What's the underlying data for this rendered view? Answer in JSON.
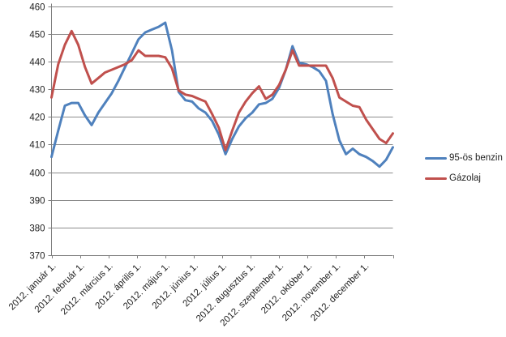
{
  "chart_data": {
    "type": "line",
    "title": "",
    "x_labels": [
      "2012. január 1.",
      "2012. február 1.",
      "2012. március 1.",
      "2012. április 1.",
      "2012. május 1.",
      "2012. június 1.",
      "2012. július 1.",
      "2012. augusztus 1.",
      "2012. szeptember 1.",
      "2012. október 1.",
      "2012. november 1.",
      "2012. december 1."
    ],
    "x_unit": "weekly samples, Jan 1 – Dec 31 2012",
    "ylim": [
      370,
      460
    ],
    "ytick_step": 10,
    "grid": true,
    "legend_position": "right",
    "series": [
      {
        "name": "95-ös benzin",
        "color": "#4F81BD",
        "values": [
          405.5,
          415,
          424,
          425,
          425,
          420.5,
          417,
          421.5,
          425,
          428.5,
          433,
          438,
          443,
          448,
          450.5,
          451.5,
          452.5,
          454,
          444,
          429,
          426,
          425.5,
          423,
          421.5,
          418.5,
          413.5,
          406.5,
          412,
          416.5,
          419.5,
          421.5,
          424.5,
          425,
          426.5,
          430.5,
          437,
          445.5,
          439.5,
          439,
          438,
          436.5,
          433,
          421,
          411.5,
          406.5,
          408.5,
          406.5,
          405.5,
          404,
          402,
          404.5,
          409
        ]
      },
      {
        "name": "Gázolaj",
        "color": "#C0504D",
        "values": [
          427,
          439,
          446,
          451,
          446,
          438,
          432,
          434,
          436,
          437,
          438,
          439,
          440.5,
          444,
          442,
          442,
          442,
          441.5,
          437.5,
          429.5,
          428,
          427.5,
          426.5,
          425.5,
          421,
          416,
          408,
          415,
          421.5,
          425.5,
          428.5,
          431,
          426.5,
          428,
          431.5,
          437,
          444,
          438.5,
          438.5,
          438.5,
          438.5,
          438.5,
          434,
          427,
          425.5,
          424,
          423.5,
          419,
          415.5,
          412,
          410.5,
          414
        ]
      }
    ],
    "colors": {
      "gridline": "#8C8C8C",
      "axis": "#7F7F7F",
      "text": "#1F1F1F",
      "background": "#FFFFFF"
    }
  }
}
